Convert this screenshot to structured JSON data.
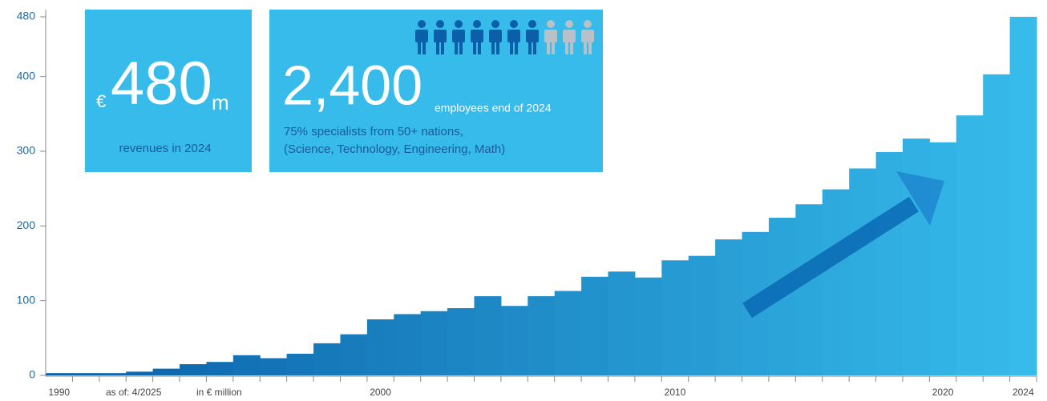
{
  "chart_data": {
    "type": "bar",
    "categories": [
      "1990",
      null,
      null,
      null,
      null,
      null,
      null,
      null,
      null,
      null,
      null,
      null,
      "2000",
      null,
      null,
      null,
      null,
      null,
      null,
      null,
      null,
      null,
      null,
      "2010",
      null,
      null,
      null,
      null,
      null,
      null,
      null,
      null,
      null,
      "2020",
      null,
      null,
      "2024"
    ],
    "values": [
      3,
      3,
      3,
      5,
      9,
      15,
      18,
      27,
      23,
      29,
      43,
      55,
      75,
      82,
      86,
      90,
      106,
      93,
      106,
      113,
      132,
      139,
      131,
      154,
      160,
      182,
      192,
      211,
      229,
      249,
      277,
      299,
      317,
      312,
      348,
      403,
      480
    ],
    "colors": [
      "#0a5fa8",
      "#36bbea"
    ],
    "ylim": [
      0,
      480
    ],
    "yticks": [
      0,
      100,
      200,
      300,
      400,
      480
    ],
    "annotations": [
      "as of: 4/2025",
      "in € million"
    ],
    "revenue": {
      "currency": "€",
      "amount": "480",
      "unit": "m",
      "caption": "revenues in 2024"
    },
    "employees": {
      "amount": "2,400",
      "caption": "employees end of 2024",
      "line1": "75% specialists from 50+ nations,",
      "line2": "(Science, Technology, Engineering, Math)"
    }
  }
}
